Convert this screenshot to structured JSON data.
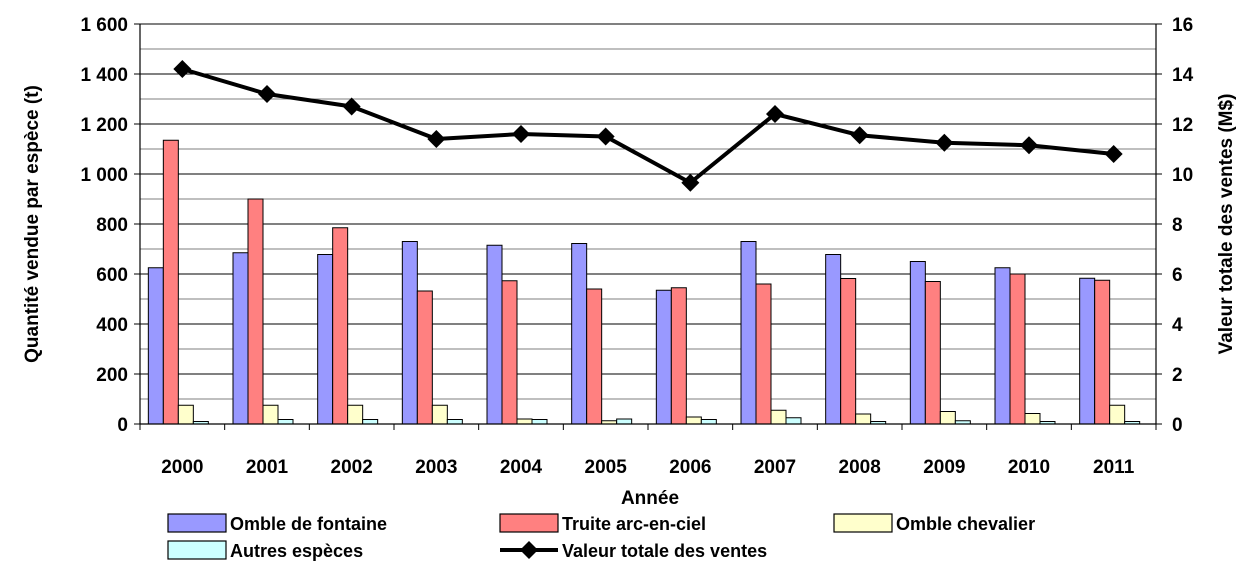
{
  "chart_data": {
    "type": "bar",
    "categories": [
      "2000",
      "2001",
      "2002",
      "2003",
      "2004",
      "2005",
      "2006",
      "2007",
      "2008",
      "2009",
      "2010",
      "2011"
    ],
    "series": [
      {
        "name": "Omble de fontaine",
        "type": "bar",
        "axis": "left",
        "color": "#9999ff",
        "values": [
          625,
          685,
          678,
          730,
          715,
          722,
          535,
          730,
          678,
          650,
          625,
          583
        ]
      },
      {
        "name": "Truite arc-en-ciel",
        "type": "bar",
        "axis": "left",
        "color": "#ff8080",
        "values": [
          1135,
          900,
          785,
          532,
          573,
          540,
          545,
          560,
          582,
          570,
          600,
          575
        ]
      },
      {
        "name": "Omble chevalier",
        "type": "bar",
        "axis": "left",
        "color": "#ffffcc",
        "values": [
          75,
          75,
          75,
          75,
          20,
          13,
          28,
          55,
          40,
          50,
          42,
          75
        ]
      },
      {
        "name": "Autres espèces",
        "type": "bar",
        "axis": "left",
        "color": "#ccffff",
        "values": [
          10,
          18,
          18,
          18,
          18,
          20,
          18,
          25,
          10,
          13,
          10,
          10
        ]
      },
      {
        "name": "Valeur totale des ventes",
        "type": "line",
        "axis": "right",
        "color": "#000000",
        "marker": "diamond",
        "values": [
          14.2,
          13.2,
          12.7,
          11.4,
          11.6,
          11.5,
          9.65,
          12.4,
          11.55,
          11.25,
          11.15,
          10.8
        ]
      }
    ],
    "xlabel": "Année",
    "ylabel": "Quantité vendue par espèce (t)",
    "y2label": "Valeur totale des ventes (M$)",
    "ylim": [
      0,
      1600
    ],
    "y2lim": [
      0,
      16
    ],
    "yticks": [
      0,
      200,
      400,
      600,
      800,
      1000,
      1200,
      1400,
      1600
    ],
    "ytick_labels": [
      "0",
      "200",
      "400",
      "600",
      "800",
      "1 000",
      "1 200",
      "1 400",
      "1 600"
    ],
    "y2ticks": [
      0,
      2,
      4,
      6,
      8,
      10,
      12,
      14,
      16
    ],
    "ytick_labels_right": [
      "0",
      "2",
      "4",
      "6",
      "8",
      "10",
      "12",
      "14",
      "16"
    ],
    "grid": true,
    "legend_position": "bottom"
  }
}
